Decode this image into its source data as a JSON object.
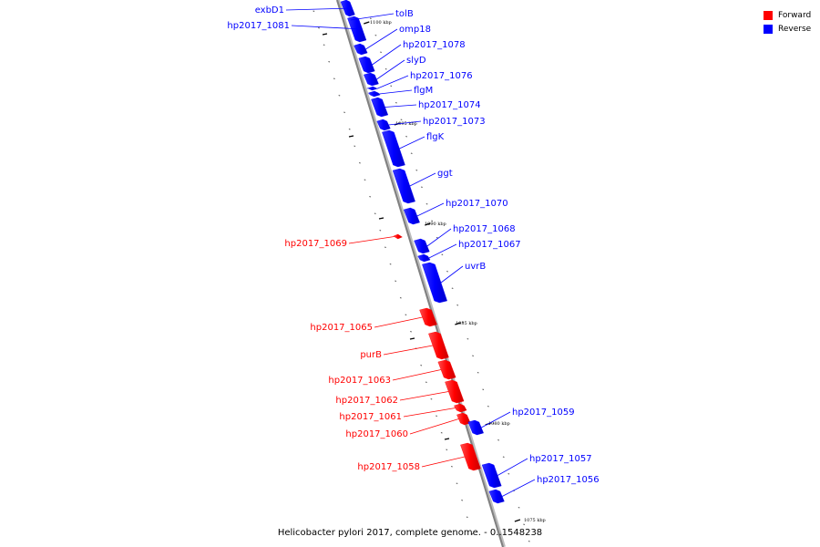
{
  "caption": "Helicobacter pylori 2017, complete genome. - 0..1548238",
  "legend": [
    {
      "label": "Forward",
      "color": "#ff0000"
    },
    {
      "label": "Reverse",
      "color": "#0000ff"
    }
  ],
  "colors": {
    "forward": "#ff0000",
    "reverse": "#0000ff",
    "backbone": "#808080"
  },
  "ticks": [
    "1100 kbp",
    "1095 kbp",
    "1090 kbp",
    "1085 kbp",
    "1080 kbp",
    "1075 kbp"
  ],
  "genes": [
    {
      "label": "exbD1",
      "strand": "reverse"
    },
    {
      "label": "hp2017_1081",
      "strand": "reverse"
    },
    {
      "label": "tolB",
      "strand": "reverse"
    },
    {
      "label": "omp18",
      "strand": "reverse"
    },
    {
      "label": "hp2017_1078",
      "strand": "reverse"
    },
    {
      "label": "slyD",
      "strand": "reverse"
    },
    {
      "label": "hp2017_1076",
      "strand": "reverse"
    },
    {
      "label": "flgM",
      "strand": "reverse"
    },
    {
      "label": "hp2017_1074",
      "strand": "reverse"
    },
    {
      "label": "hp2017_1073",
      "strand": "reverse"
    },
    {
      "label": "flgK",
      "strand": "reverse"
    },
    {
      "label": "ggt",
      "strand": "reverse"
    },
    {
      "label": "hp2017_1070",
      "strand": "reverse"
    },
    {
      "label": "hp2017_1069",
      "strand": "forward"
    },
    {
      "label": "hp2017_1068",
      "strand": "reverse"
    },
    {
      "label": "hp2017_1067",
      "strand": "reverse"
    },
    {
      "label": "uvrB",
      "strand": "reverse"
    },
    {
      "label": "hp2017_1065",
      "strand": "forward"
    },
    {
      "label": "purB",
      "strand": "forward"
    },
    {
      "label": "hp2017_1063",
      "strand": "forward"
    },
    {
      "label": "hp2017_1062",
      "strand": "forward"
    },
    {
      "label": "hp2017_1061",
      "strand": "forward"
    },
    {
      "label": "hp2017_1060",
      "strand": "forward"
    },
    {
      "label": "hp2017_1059",
      "strand": "reverse"
    },
    {
      "label": "hp2017_1058",
      "strand": "forward"
    },
    {
      "label": "hp2017_1057",
      "strand": "reverse"
    },
    {
      "label": "hp2017_1056",
      "strand": "reverse"
    }
  ]
}
